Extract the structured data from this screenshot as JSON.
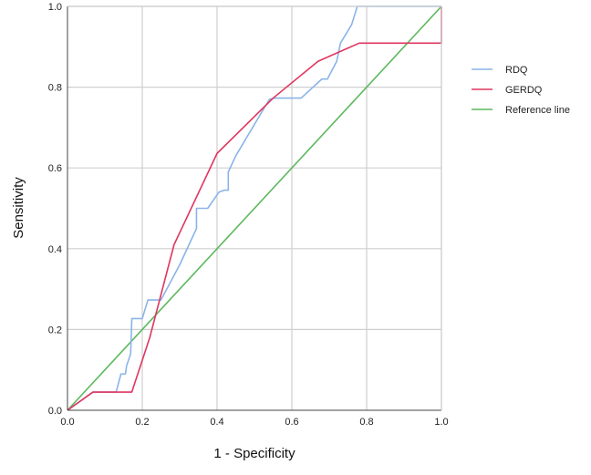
{
  "chart_data": {
    "type": "line",
    "title": "",
    "xlabel": "1 - Specificity",
    "ylabel": "Sensitivity",
    "xlim": [
      0,
      1
    ],
    "ylim": [
      0,
      1
    ],
    "xticks": [
      "0.0",
      "0.2",
      "0.4",
      "0.6",
      "0.8",
      "1.0"
    ],
    "yticks": [
      "0.0",
      "0.2",
      "0.4",
      "0.6",
      "0.8",
      "1.0"
    ],
    "grid": true,
    "legend_position": "right",
    "series": [
      {
        "name": "RDQ",
        "color": "#8ab4e8",
        "x": [
          0,
          0.068,
          0.13,
          0.143,
          0.155,
          0.158,
          0.169,
          0.172,
          0.2,
          0.215,
          0.25,
          0.3,
          0.345,
          0.345,
          0.375,
          0.405,
          0.42,
          0.43,
          0.43,
          0.45,
          0.54,
          0.555,
          0.625,
          0.68,
          0.695,
          0.72,
          0.73,
          0.76,
          0.775,
          0.8,
          1.0
        ],
        "y": [
          0,
          0.045,
          0.045,
          0.09,
          0.09,
          0.11,
          0.14,
          0.227,
          0.227,
          0.273,
          0.273,
          0.36,
          0.45,
          0.5,
          0.5,
          0.54,
          0.545,
          0.545,
          0.59,
          0.63,
          0.77,
          0.773,
          0.773,
          0.82,
          0.82,
          0.864,
          0.909,
          0.955,
          1.0,
          1.0,
          1.0
        ]
      },
      {
        "name": "GERDQ",
        "color": "#e0365f",
        "x": [
          0,
          0.068,
          0.172,
          0.22,
          0.285,
          0.4,
          0.55,
          0.67,
          0.78,
          1.0,
          1.0
        ],
        "y": [
          0,
          0.045,
          0.045,
          0.18,
          0.41,
          0.636,
          0.773,
          0.864,
          0.909,
          0.909,
          1.0
        ]
      },
      {
        "name": "Reference line",
        "color": "#5cb85c",
        "x": [
          0,
          1
        ],
        "y": [
          0,
          1
        ]
      }
    ]
  }
}
